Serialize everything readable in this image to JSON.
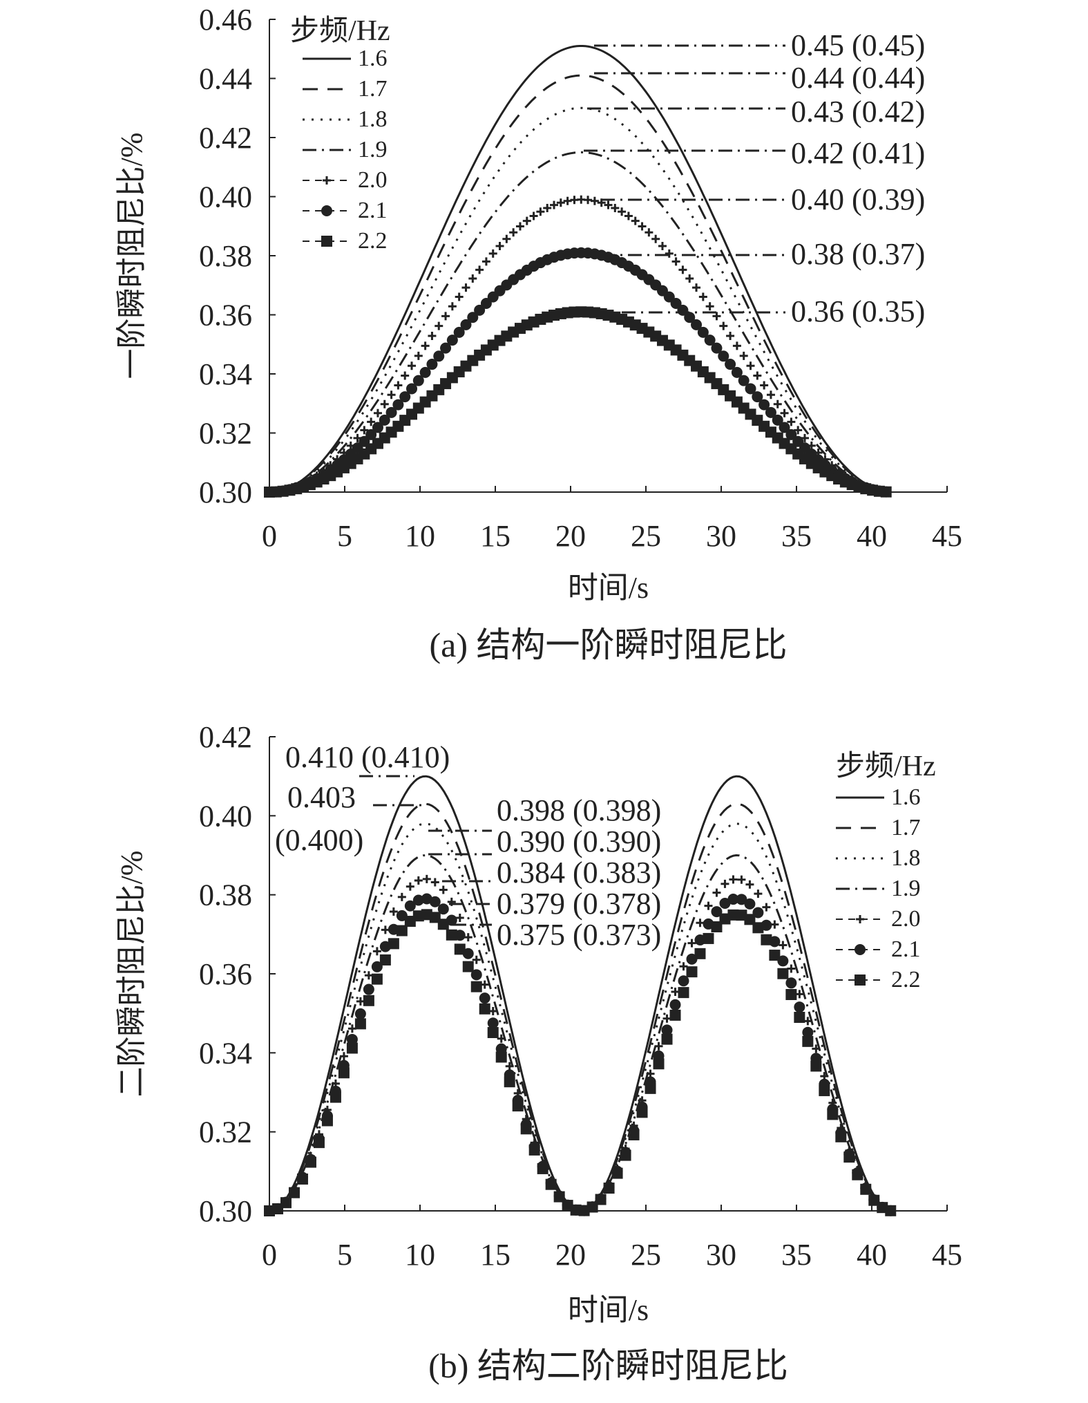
{
  "chart_data": [
    {
      "type": "line",
      "title": "(a) 结构一阶瞬时阻尼比",
      "xlabel": "时间/s",
      "ylabel": "一阶瞬时阻尼比/%",
      "xlim": [
        0,
        45
      ],
      "ylim": [
        0.3,
        0.46
      ],
      "xticks": [
        "0",
        "5",
        "10",
        "15",
        "20",
        "25",
        "30",
        "35",
        "40",
        "45"
      ],
      "yticks": [
        "0.30",
        "0.32",
        "0.34",
        "0.36",
        "0.38",
        "0.40",
        "0.42",
        "0.44",
        "0.46"
      ],
      "legend_title": "步频/Hz",
      "legend_position": "top-left",
      "curve_model": "raised-cosine, humps=1, duration=41.4s, base=0.30",
      "series": [
        {
          "name": "1.6",
          "peak": 0.451,
          "style": "solid"
        },
        {
          "name": "1.7",
          "peak": 0.441,
          "style": "dash"
        },
        {
          "name": "1.8",
          "peak": 0.43,
          "style": "dot"
        },
        {
          "name": "1.9",
          "peak": 0.415,
          "style": "dashdot"
        },
        {
          "name": "2.0",
          "peak": 0.399,
          "style": "plus"
        },
        {
          "name": "2.1",
          "peak": 0.381,
          "style": "circle"
        },
        {
          "name": "2.2",
          "peak": 0.361,
          "style": "square"
        }
      ],
      "annotations": [
        "0.45 (0.45)",
        "0.44 (0.44)",
        "0.43 (0.42)",
        "0.42 (0.41)",
        "0.40 (0.39)",
        "0.38 (0.37)",
        "0.36 (0.35)"
      ]
    },
    {
      "type": "line",
      "title": "(b) 结构二阶瞬时阻尼比",
      "xlabel": "时间/s",
      "ylabel": "二阶瞬时阻尼比/%",
      "xlim": [
        0,
        45
      ],
      "ylim": [
        0.3,
        0.42
      ],
      "xticks": [
        "0",
        "5",
        "10",
        "15",
        "20",
        "25",
        "30",
        "35",
        "40",
        "45"
      ],
      "yticks": [
        "0.30",
        "0.32",
        "0.34",
        "0.36",
        "0.38",
        "0.40",
        "0.42"
      ],
      "legend_title": "步频/Hz",
      "legend_position": "top-right",
      "curve_model": "raised-cosine, humps=2, duration=41.4s, base=0.30",
      "series": [
        {
          "name": "1.6",
          "peak": 0.41,
          "style": "solid"
        },
        {
          "name": "1.7",
          "peak": 0.403,
          "style": "dash"
        },
        {
          "name": "1.8",
          "peak": 0.398,
          "style": "dot"
        },
        {
          "name": "1.9",
          "peak": 0.39,
          "style": "dashdot"
        },
        {
          "name": "2.0",
          "peak": 0.384,
          "style": "plus"
        },
        {
          "name": "2.1",
          "peak": 0.379,
          "style": "circle"
        },
        {
          "name": "2.2",
          "peak": 0.375,
          "style": "square"
        }
      ],
      "annotations": [
        "0.410 (0.410)",
        "0.403",
        "(0.400)",
        "0.398 (0.398)",
        "0.390 (0.390)",
        "0.384 (0.383)",
        "0.379 (0.378)",
        "0.375 (0.373)"
      ]
    }
  ]
}
